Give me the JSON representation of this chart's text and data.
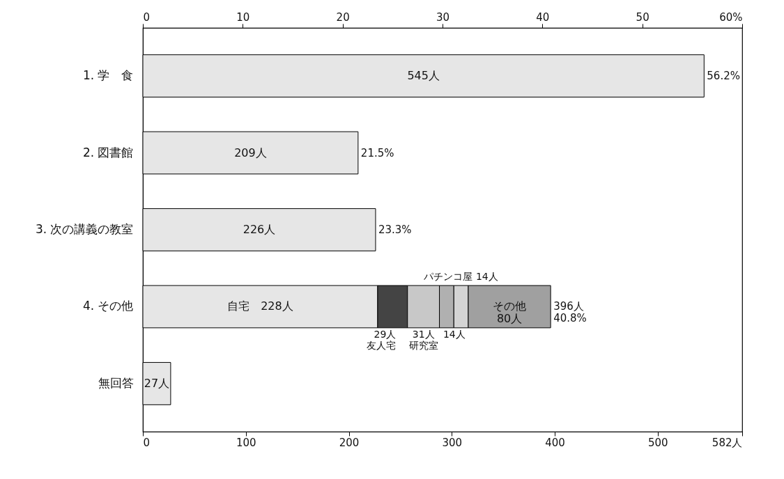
{
  "chart_data": {
    "type": "bar",
    "orientation": "horizontal",
    "stacked": true,
    "categories": [
      "1. 学　食",
      "2. 図書館",
      "3. 次の講義の教室",
      "4. その他",
      "無回答"
    ],
    "series": [
      {
        "color": "#e6e6e6",
        "values": [
          545,
          209,
          226,
          228,
          27
        ],
        "value_labels": [
          "545人",
          "209人",
          "226人",
          "自宅　228人",
          "27人"
        ]
      },
      {
        "name": "友人宅",
        "color": "#444444",
        "values": [
          null,
          null,
          null,
          29,
          null
        ],
        "value_labels": [
          null,
          null,
          null,
          "29人",
          null
        ]
      },
      {
        "name": "研究室",
        "color": "#c8c8c8",
        "values": [
          null,
          null,
          null,
          31,
          null
        ],
        "value_labels": [
          null,
          null,
          null,
          "31人",
          null
        ]
      },
      {
        "color": "#b0b0b0",
        "values": [
          null,
          null,
          null,
          14,
          null
        ],
        "value_labels": [
          null,
          null,
          null,
          "14人",
          null
        ]
      },
      {
        "name": "パチンコ屋",
        "color": "#d4d4d4",
        "values": [
          null,
          null,
          null,
          14,
          null
        ],
        "value_labels": [
          null,
          null,
          null,
          "14人",
          null
        ]
      },
      {
        "name": "その他",
        "color": "#a0a0a0",
        "values": [
          null,
          null,
          null,
          80,
          null
        ],
        "value_labels": [
          null,
          null,
          null,
          "80人",
          null
        ]
      }
    ],
    "annotations": [
      {
        "text": "56.2%",
        "x": 545,
        "y": "1. 学　食"
      },
      {
        "text": "21.5%",
        "x": 209,
        "y": "2. 図書館"
      },
      {
        "text": "23.3%",
        "x": 226,
        "y": "3. 次の講義の教室"
      },
      {
        "text": "396人 40.8%",
        "x": 396,
        "y": "4. その他"
      }
    ],
    "xlim": [
      0,
      582
    ],
    "xticks": [
      0,
      100,
      200,
      300,
      400,
      500,
      {
        "value": 582,
        "label": "582人"
      }
    ],
    "x2lim": [
      0,
      60
    ],
    "x2ticks": [
      0,
      10,
      20,
      30,
      40,
      50,
      {
        "value": 60,
        "label": "60%"
      }
    ],
    "grid": false
  }
}
